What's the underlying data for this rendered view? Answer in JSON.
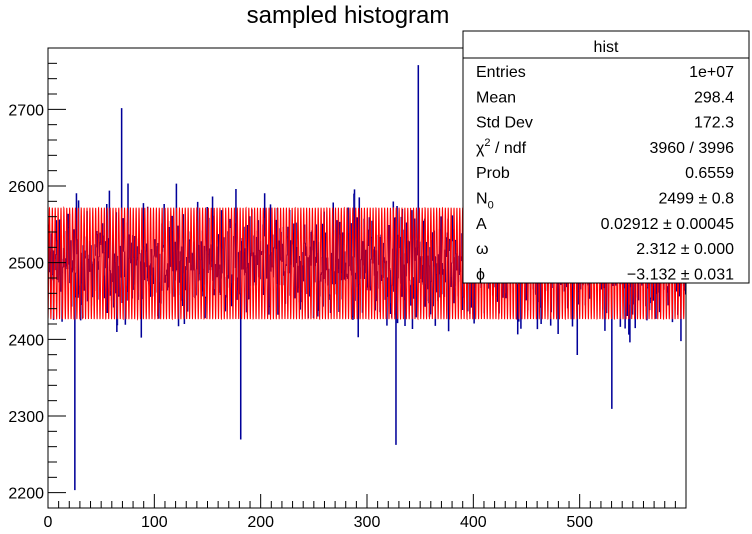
{
  "chart_data": {
    "type": "bar",
    "title": "sampled histogram",
    "xlabel": "",
    "ylabel": "",
    "xlim": [
      0,
      600
    ],
    "ylim": [
      2180,
      2780
    ],
    "x_ticks": [
      "0",
      "100",
      "200",
      "300",
      "400",
      "500"
    ],
    "y_ticks": [
      "2200",
      "2300",
      "2400",
      "2500",
      "2600",
      "2700"
    ],
    "colors": {
      "histogram": "#000099",
      "fit": "#ff0000"
    },
    "histogram": {
      "name": "hist",
      "bins": 4000,
      "center": 2499,
      "noted_extremes": [
        {
          "x": 25,
          "y": 2204
        },
        {
          "x": 181,
          "y": 2270
        },
        {
          "x": 327,
          "y": 2263
        },
        {
          "x": 348,
          "y": 2757
        },
        {
          "x": 69,
          "y": 2701
        },
        {
          "x": 530,
          "y": 2310
        }
      ]
    },
    "fit": {
      "N0": 2499,
      "A": 0.02912,
      "omega": 2.312,
      "phi": -3.132
    }
  },
  "stats_box": {
    "title": "hist",
    "rows": [
      {
        "label": "Entries",
        "value": "1e+07"
      },
      {
        "label": "Mean",
        "value": "298.4"
      },
      {
        "label": "Std Dev",
        "value": "172.3"
      },
      {
        "label": "χ",
        "label_sup": "2",
        "label_rest": " / ndf",
        "value": "3960 / 3996"
      },
      {
        "label": "Prob",
        "value": "0.6559"
      },
      {
        "label": "N",
        "label_sub": "0",
        "value": "2499 ± 0.8"
      },
      {
        "label": "A",
        "value": "0.02912 ± 0.00045"
      },
      {
        "label": "ω",
        "value": "2.312 ± 0.000"
      },
      {
        "label": "ϕ",
        "value": "−3.132 ± 0.031"
      }
    ]
  }
}
